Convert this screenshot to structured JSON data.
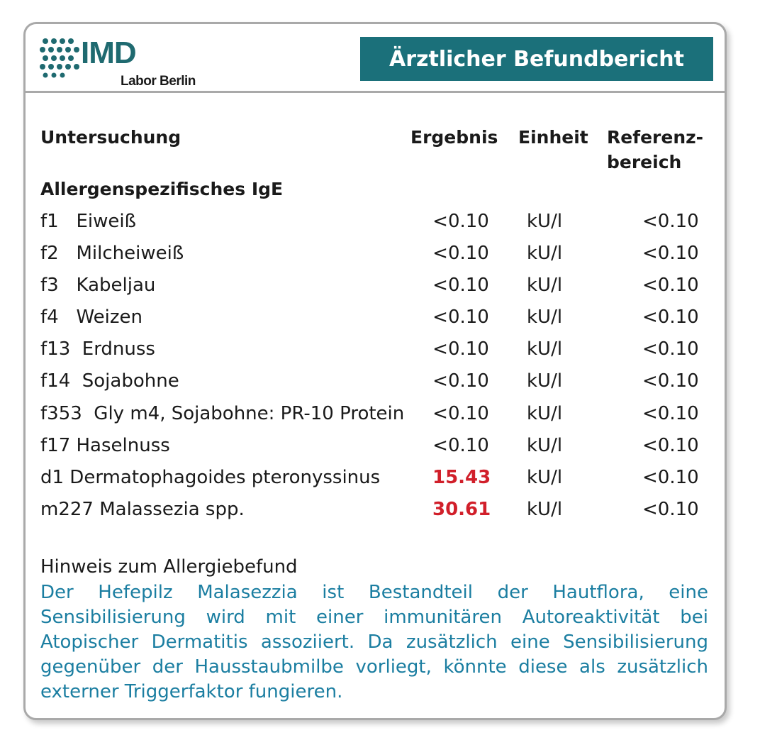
{
  "logo": {
    "name": "IMD",
    "sub": "Labor Berlin"
  },
  "title": "Ärztlicher Befundbericht",
  "colors": {
    "accent": "#1b707a",
    "high": "#d11f2a",
    "note": "#1b7ea1",
    "border": "#a9a9a9"
  },
  "columns": {
    "test": "Untersuchung",
    "result": "Ergebnis",
    "unit": "Einheit",
    "ref_line1": "Referenz-",
    "ref_line2": "bereich"
  },
  "section": "Allergenspezifisches IgE",
  "rows": [
    {
      "label": "f1   Eiweiß",
      "result": "<0.10",
      "unit": "kU/l",
      "ref": "<0.10",
      "high": false
    },
    {
      "label": "f2   Milcheiweiß",
      "result": "<0.10",
      "unit": "kU/l",
      "ref": "<0.10",
      "high": false
    },
    {
      "label": "f3   Kabeljau",
      "result": "<0.10",
      "unit": "kU/l",
      "ref": "<0.10",
      "high": false
    },
    {
      "label": "f4   Weizen",
      "result": "<0.10",
      "unit": "kU/l",
      "ref": "<0.10",
      "high": false
    },
    {
      "label": "f13  Erdnuss",
      "result": "<0.10",
      "unit": "kU/l",
      "ref": "<0.10",
      "high": false
    },
    {
      "label": "f14  Sojabohne",
      "result": "<0.10",
      "unit": "kU/l",
      "ref": "<0.10",
      "high": false
    },
    {
      "label": "f353  Gly m4, Sojabohne: PR-10 Protein",
      "result": "<0.10",
      "unit": "kU/l",
      "ref": "<0.10",
      "high": false
    },
    {
      "label": "f17 Haselnuss",
      "result": "<0.10",
      "unit": "kU/l",
      "ref": "<0.10",
      "high": false
    },
    {
      "label": "d1 Dermatophagoides pteronyssinus",
      "result": "15.43",
      "unit": "kU/l",
      "ref": "<0.10",
      "high": true
    },
    {
      "label": "m227 Malassezia spp.",
      "result": "30.61",
      "unit": "kU/l",
      "ref": "<0.10",
      "high": true
    }
  ],
  "note": {
    "title": "Hinweis zum Allergiebefund",
    "text": "Der Hefepilz Malasezzia ist Bestandteil der Hautflora, eine Sensibilisierung wird mit einer immunitären Autoreaktivität bei Atopischer Dermatitis assoziiert. Da zusätzlich eine Sensibilisierung gegenüber der Hausstaubmilbe vorliegt, könnte diese als zusätzlich externer Triggerfaktor fungieren."
  }
}
